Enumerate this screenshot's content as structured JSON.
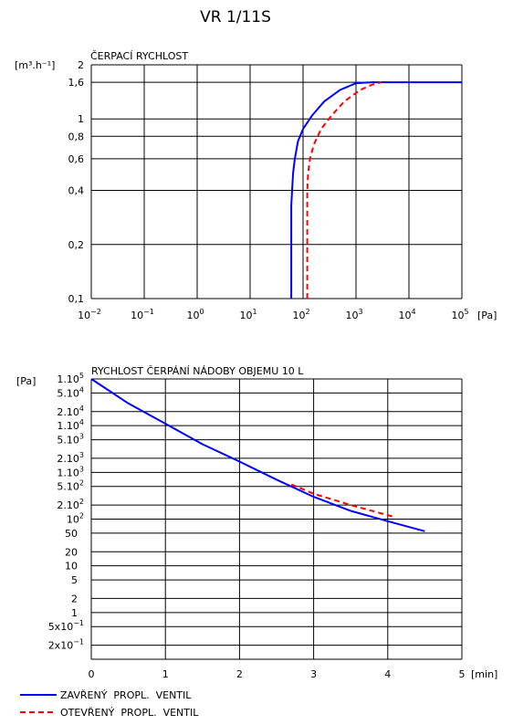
{
  "title": "VR 1/11S",
  "chart_data": [
    {
      "type": "line",
      "title": "ČERPACÍ RYCHLOST",
      "ylabel": "[m³.h⁻¹]",
      "xlabel": "[Pa]",
      "x_scale": "log",
      "y_scale": "log",
      "xlim": [
        0.01,
        100000
      ],
      "ylim": [
        0.1,
        2
      ],
      "x_ticks": [
        {
          "v": 0.01,
          "base": "10",
          "exp": "−2"
        },
        {
          "v": 0.1,
          "base": "10",
          "exp": "−1"
        },
        {
          "v": 1,
          "base": "10",
          "exp": "0"
        },
        {
          "v": 10,
          "base": "10",
          "exp": "1"
        },
        {
          "v": 100,
          "base": "10",
          "exp": "2"
        },
        {
          "v": 1000,
          "base": "10",
          "exp": "3"
        },
        {
          "v": 10000,
          "base": "10",
          "exp": "4"
        },
        {
          "v": 100000,
          "base": "10",
          "exp": "5"
        }
      ],
      "y_ticks": [
        {
          "v": 0.1,
          "label": "0,1"
        },
        {
          "v": 0.2,
          "label": "0,2"
        },
        {
          "v": 0.4,
          "label": "0,4"
        },
        {
          "v": 0.6,
          "label": "0,6"
        },
        {
          "v": 0.8,
          "label": "0,8"
        },
        {
          "v": 1,
          "label": "1"
        },
        {
          "v": 1.6,
          "label": "1,6"
        },
        {
          "v": 2,
          "label": "2"
        }
      ],
      "grid": true,
      "series": [
        {
          "name": "ZAVŘENÝ PROPL. VENTIL",
          "color": "#0000ff",
          "dash": false,
          "points": [
            [
              60,
              0.1
            ],
            [
              60,
              0.33
            ],
            [
              62,
              0.4
            ],
            [
              65,
              0.5
            ],
            [
              70,
              0.6
            ],
            [
              80,
              0.75
            ],
            [
              100,
              0.88
            ],
            [
              150,
              1.05
            ],
            [
              250,
              1.25
            ],
            [
              500,
              1.45
            ],
            [
              1000,
              1.58
            ],
            [
              2000,
              1.6
            ],
            [
              100000,
              1.6
            ]
          ]
        },
        {
          "name": "OTEVŘENÝ PROPL. VENTIL",
          "color": "#ff0000",
          "dash": true,
          "points": [
            [
              120,
              0.1
            ],
            [
              120,
              0.4
            ],
            [
              125,
              0.5
            ],
            [
              135,
              0.6
            ],
            [
              160,
              0.72
            ],
            [
              220,
              0.88
            ],
            [
              350,
              1.05
            ],
            [
              600,
              1.25
            ],
            [
              1200,
              1.45
            ],
            [
              2000,
              1.55
            ],
            [
              3000,
              1.6
            ]
          ]
        }
      ]
    },
    {
      "type": "line",
      "title": "RYCHLOST ČERPÁNÍ NÁDOBY OBJEMU 10 L",
      "ylabel": "[Pa]",
      "xlabel": "[min]",
      "y_scale": "log",
      "xlim": [
        0,
        5
      ],
      "ylim": [
        0.1,
        100000
      ],
      "x_ticks": [
        {
          "v": 0,
          "label": "0"
        },
        {
          "v": 1,
          "label": "1"
        },
        {
          "v": 2,
          "label": "2"
        },
        {
          "v": 3,
          "label": "3"
        },
        {
          "v": 4,
          "label": "4"
        },
        {
          "v": 5,
          "label": "5"
        }
      ],
      "y_ticks": [
        {
          "v": 100000,
          "base": "1.10",
          "exp": "5"
        },
        {
          "v": 50000,
          "base": "5.10",
          "exp": "4"
        },
        {
          "v": 20000,
          "base": "2.10",
          "exp": "4"
        },
        {
          "v": 10000,
          "base": "1.10",
          "exp": "4"
        },
        {
          "v": 5000,
          "base": "5.10",
          "exp": "3"
        },
        {
          "v": 2000,
          "base": "2.10",
          "exp": "3"
        },
        {
          "v": 1000,
          "base": "1.10",
          "exp": "3"
        },
        {
          "v": 500,
          "base": "5.10",
          "exp": "2"
        },
        {
          "v": 200,
          "base": "2.10",
          "exp": "2"
        },
        {
          "v": 100,
          "base": "10",
          "exp": "2"
        },
        {
          "v": 50,
          "label": "50"
        },
        {
          "v": 20,
          "label": "20"
        },
        {
          "v": 10,
          "label": "10"
        },
        {
          "v": 5,
          "label": "5"
        },
        {
          "v": 2,
          "label": "2"
        },
        {
          "v": 1,
          "label": "1"
        },
        {
          "v": 0.5,
          "base": "5x10",
          "exp": "−1"
        },
        {
          "v": 0.2,
          "base": "2x10",
          "exp": "−1"
        }
      ],
      "grid": true,
      "series": [
        {
          "name": "ZAVŘENÝ PROPL. VENTIL",
          "color": "#0000ff",
          "dash": false,
          "points": [
            [
              0,
              100000
            ],
            [
              0.5,
              30000
            ],
            [
              1,
              11000
            ],
            [
              1.5,
              4000
            ],
            [
              2,
              1700
            ],
            [
              2.5,
              700
            ],
            [
              3,
              300
            ],
            [
              3.5,
              150
            ],
            [
              4,
              90
            ],
            [
              4.5,
              55
            ]
          ]
        },
        {
          "name": "OTEVŘENÝ PROPL. VENTIL",
          "color": "#ff0000",
          "dash": true,
          "points": [
            [
              2.7,
              550
            ],
            [
              3,
              350
            ],
            [
              3.5,
              200
            ],
            [
              4.1,
              110
            ]
          ]
        }
      ]
    }
  ],
  "legend": [
    {
      "label": "ZAVŘENÝ  PROPL.  VENTIL",
      "color": "#0000ff",
      "dash": false
    },
    {
      "label": "OTEVŘENÝ  PROPL.  VENTIL",
      "color": "#ff0000",
      "dash": true
    }
  ]
}
